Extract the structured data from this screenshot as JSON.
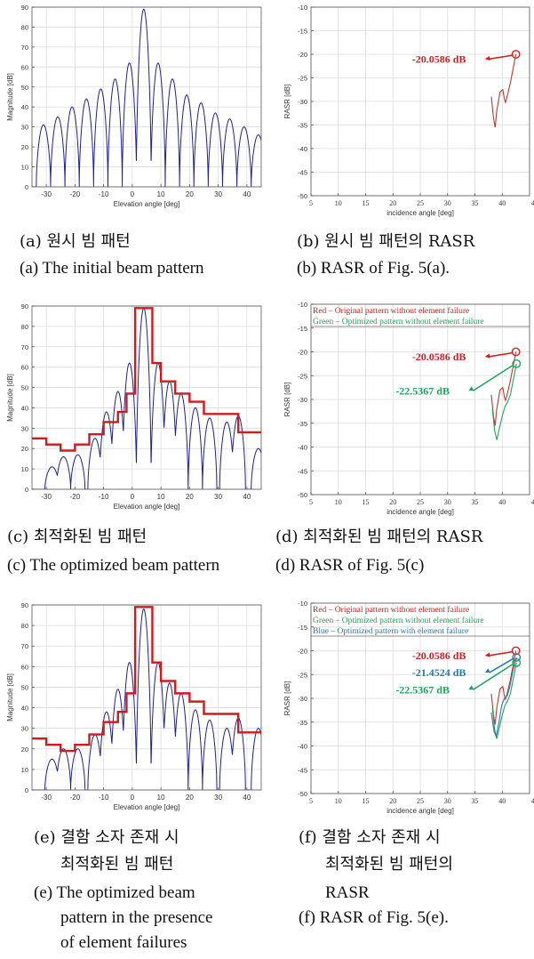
{
  "panels": [
    {
      "id": "a",
      "caption_ko": [
        "(a) 원시 빔 패턴"
      ],
      "caption_en": [
        "(a) The initial beam pattern"
      ],
      "chart_data": {
        "type": "line",
        "xlabel": "Elevation angle [deg]",
        "ylabel": "Magnitude [dB]",
        "xlim": [
          -35,
          45
        ],
        "ylim": [
          0,
          90
        ],
        "xticks": [
          -30,
          -20,
          -10,
          0,
          10,
          20,
          30,
          40
        ],
        "yticks": [
          0,
          10,
          20,
          30,
          40,
          50,
          60,
          70,
          80,
          90
        ],
        "grid": true,
        "series": [
          {
            "color": "#1f1f9a",
            "kind": "beam",
            "peak_x": 4,
            "peak_y": 89,
            "sidelobes": [
              [
                -1,
                62
              ],
              [
                9,
                62
              ],
              [
                -6,
                54
              ],
              [
                14,
                54
              ],
              [
                -11,
                49
              ],
              [
                19,
                46
              ],
              [
                -16,
                44
              ],
              [
                24,
                42
              ],
              [
                -21,
                40
              ],
              [
                29,
                37
              ],
              [
                -26,
                35
              ],
              [
                34,
                34
              ],
              [
                -31,
                31
              ],
              [
                39,
                30
              ],
              [
                44,
                26
              ]
            ]
          }
        ]
      }
    },
    {
      "id": "b",
      "caption_ko": [
        "(b) 원시 빔 패턴의 RASR"
      ],
      "caption_en": [
        "(b) RASR of Fig. 5(a)."
      ],
      "chart_data": {
        "type": "line",
        "xlabel": "incidence angle [deg]",
        "ylabel": "RASR [dB]",
        "xlim": [
          5,
          45
        ],
        "ylim": [
          -50,
          -10
        ],
        "xticks": [
          5,
          10,
          15,
          20,
          25,
          30,
          35,
          40
        ],
        "xtick_extra": "4:",
        "yticks": [
          -50,
          -45,
          -40,
          -35,
          -30,
          -25,
          -20,
          -15,
          -10
        ],
        "grid": true,
        "legend": [],
        "annotations": [
          {
            "text": "-20.0586 dB",
            "color": "#d42020",
            "text_x": 23.5,
            "text_y": -21,
            "point": [
              42.5,
              -20
            ]
          }
        ],
        "series": [
          {
            "color": "#c0392b",
            "x": [
              38.0,
              38.4,
              38.7,
              39.0,
              39.6,
              40.1,
              40.4,
              40.6,
              41.0,
              41.5,
              42.0,
              42.5
            ],
            "y": [
              -29,
              -33.5,
              -35.5,
              -32,
              -28,
              -27.5,
              -29.5,
              -30.2,
              -28.5,
              -26,
              -23,
              -20
            ]
          }
        ]
      }
    },
    {
      "id": "c",
      "caption_ko": [
        "(c) 최적화된 빔 패턴"
      ],
      "caption_en": [
        "(c) The optimized beam pattern"
      ],
      "chart_data": {
        "type": "line",
        "xlabel": "Elevation angle [deg]",
        "ylabel": "Magnitude [dB]",
        "xlim": [
          -35,
          45
        ],
        "ylim": [
          0,
          90
        ],
        "xticks": [
          -30,
          -20,
          -10,
          0,
          10,
          20,
          30,
          40
        ],
        "yticks": [
          0,
          10,
          20,
          30,
          40,
          50,
          60,
          70,
          80,
          90
        ],
        "grid": true,
        "mask": {
          "color": "#d11a1a",
          "x": [
            -35,
            -30,
            -30,
            -25,
            -25,
            -20,
            -20,
            -15,
            -15,
            -10,
            -10,
            -5,
            -5,
            -2,
            -2,
            1,
            1,
            7,
            7,
            10,
            10,
            15,
            15,
            20,
            20,
            25,
            25,
            30,
            30,
            37,
            37,
            45
          ],
          "y": [
            25,
            25,
            22,
            22,
            19,
            19,
            22,
            22,
            27,
            27,
            33,
            33,
            38,
            38,
            47,
            47,
            89,
            89,
            62,
            62,
            53,
            53,
            47,
            47,
            43,
            43,
            37,
            37,
            37,
            37,
            28,
            28
          ]
        },
        "series": [
          {
            "color": "#1f1f9a",
            "kind": "beam",
            "peak_x": 4,
            "peak_y": 89,
            "sidelobes": [
              [
                -1,
                62
              ],
              [
                9,
                62
              ],
              [
                -5,
                48
              ],
              [
                13,
                53
              ],
              [
                -9,
                38
              ],
              [
                17,
                47
              ],
              [
                -13,
                25
              ],
              [
                22,
                40
              ],
              [
                -19,
                17
              ],
              [
                27,
                35
              ],
              [
                -24,
                16
              ],
              [
                33,
                33
              ],
              [
                -28,
                11
              ],
              [
                37,
                36
              ],
              [
                44,
                20
              ]
            ]
          }
        ]
      }
    },
    {
      "id": "d",
      "caption_ko": [
        "(d) 최적화된 빔 패턴의 RASR"
      ],
      "caption_en": [
        "(d) RASR of Fig. 5(c)"
      ],
      "chart_data": {
        "type": "line",
        "xlabel": "incidence angle [deg]",
        "ylabel": "RASR [dB]",
        "xlim": [
          5,
          45
        ],
        "ylim": [
          -50,
          -10
        ],
        "xticks": [
          5,
          10,
          15,
          20,
          25,
          30,
          35,
          40
        ],
        "xtick_extra": "4",
        "yticks": [
          -50,
          -45,
          -40,
          -35,
          -30,
          -25,
          -20,
          -15,
          -10
        ],
        "grid": true,
        "legend": [
          {
            "text": "Red – Original pattern without element failure",
            "color": "#d42020"
          },
          {
            "text": "Green –  Optimized pattern without element failure",
            "color": "#1fa55a"
          }
        ],
        "annotations": [
          {
            "text": "-20.0586 dB",
            "color": "#d42020",
            "text_x": 23.5,
            "text_y": -21,
            "point": [
              42.5,
              -20
            ]
          },
          {
            "text": "-22.5367 dB",
            "color": "#1fa55a",
            "text_x": 20.5,
            "text_y": -28.2,
            "point": [
              42.6,
              -22.5
            ]
          }
        ],
        "series": [
          {
            "color": "#c0392b",
            "x": [
              38.0,
              38.4,
              38.7,
              39.0,
              39.6,
              40.1,
              40.4,
              40.6,
              41.0,
              41.5,
              42.0,
              42.5
            ],
            "y": [
              -29,
              -33.5,
              -35.5,
              -32,
              -28,
              -27.5,
              -29.5,
              -30.2,
              -28.5,
              -26,
              -23,
              -20
            ]
          },
          {
            "color": "#1fa55a",
            "x": [
              38.2,
              38.6,
              39.0,
              39.5,
              40.0,
              40.5,
              41.0,
              41.5,
              42.0,
              42.6
            ],
            "y": [
              -32,
              -36.5,
              -38.5,
              -36,
              -33.5,
              -31.5,
              -30.5,
              -29,
              -26,
              -22.5
            ]
          }
        ]
      }
    },
    {
      "id": "e",
      "caption_ko": [
        "(e) 결함 소자 존재 시",
        "최적화된 빔 패턴"
      ],
      "caption_en": [
        "(e) The optimized beam",
        "pattern in the presence",
        "of element failures"
      ],
      "chart_data": {
        "type": "line",
        "xlabel": "Elevation angle [deg]",
        "ylabel": "Magnitude [dB]",
        "xlim": [
          -35,
          45
        ],
        "ylim": [
          0,
          90
        ],
        "xticks": [
          -30,
          -20,
          -10,
          0,
          10,
          20,
          30,
          40
        ],
        "yticks": [
          0,
          10,
          20,
          30,
          40,
          50,
          60,
          70,
          80,
          90
        ],
        "grid": true,
        "mask": {
          "color": "#d11a1a",
          "x": [
            -35,
            -30,
            -30,
            -25,
            -25,
            -20,
            -20,
            -15,
            -15,
            -10,
            -10,
            -5,
            -5,
            -2,
            -2,
            1,
            1,
            7,
            7,
            10,
            10,
            15,
            15,
            20,
            20,
            25,
            25,
            30,
            30,
            37,
            37,
            45
          ],
          "y": [
            25,
            25,
            22,
            22,
            19,
            19,
            22,
            22,
            27,
            27,
            33,
            33,
            38,
            38,
            47,
            47,
            89,
            89,
            62,
            62,
            53,
            53,
            47,
            47,
            43,
            43,
            37,
            37,
            37,
            37,
            28,
            28
          ]
        },
        "series": [
          {
            "color": "#1f1f9a",
            "kind": "beam",
            "peak_x": 4,
            "peak_y": 88,
            "sidelobes": [
              [
                -1,
                62
              ],
              [
                9,
                62
              ],
              [
                -5,
                49
              ],
              [
                13,
                52
              ],
              [
                -9,
                38
              ],
              [
                17,
                47
              ],
              [
                -13,
                27
              ],
              [
                22,
                39
              ],
              [
                -19,
                20
              ],
              [
                27,
                34
              ],
              [
                -24,
                20
              ],
              [
                33,
                30
              ],
              [
                -28,
                15
              ],
              [
                37,
                35
              ],
              [
                44,
                30
              ]
            ]
          }
        ]
      }
    },
    {
      "id": "f",
      "caption_ko": [
        "(f) 결함 소자 존재 시",
        "최적화된 빔 패턴의"
      ],
      "caption_en": [
        "RASR",
        "(f) RASR of Fig. 5(e)."
      ],
      "chart_data": {
        "type": "line",
        "xlabel": "incidence angle [deg]",
        "ylabel": "RASR [dB]",
        "xlim": [
          5,
          45
        ],
        "ylim": [
          -50,
          -10
        ],
        "xticks": [
          5,
          10,
          15,
          20,
          25,
          30,
          35,
          40
        ],
        "xtick_extra": "4",
        "yticks": [
          -50,
          -45,
          -40,
          -35,
          -30,
          -25,
          -20,
          -15,
          -10
        ],
        "grid": true,
        "legend": [
          {
            "text": "Red – Original pattern without element failure",
            "color": "#d42020"
          },
          {
            "text": "Green –  Optimized pattern without element failure",
            "color": "#1fa55a"
          },
          {
            "text": "Blue – Optimized pattern with element failure",
            "color": "#2a7ab8"
          }
        ],
        "annotations": [
          {
            "text": "-20.0586 dB",
            "color": "#d42020",
            "text_x": 23.5,
            "text_y": -21,
            "point": [
              42.5,
              -20
            ]
          },
          {
            "text": "-21.4524 dB",
            "color": "#2a7ab8",
            "text_x": 23.5,
            "text_y": -24.6,
            "point": [
              42.6,
              -21.4
            ]
          },
          {
            "text": "-22.5367 dB",
            "color": "#1fa55a",
            "text_x": 20.5,
            "text_y": -28.2,
            "point": [
              42.6,
              -22.5
            ]
          }
        ],
        "series": [
          {
            "color": "#c0392b",
            "x": [
              38.0,
              38.4,
              38.7,
              39.0,
              39.6,
              40.1,
              40.4,
              40.6,
              41.0,
              41.5,
              42.0,
              42.5
            ],
            "y": [
              -29,
              -33.5,
              -35.5,
              -32,
              -28,
              -27.5,
              -29.5,
              -30.2,
              -28.5,
              -26,
              -23,
              -20
            ]
          },
          {
            "color": "#1fa55a",
            "x": [
              38.2,
              38.6,
              39.0,
              39.5,
              40.0,
              40.5,
              41.0,
              41.5,
              42.0,
              42.6
            ],
            "y": [
              -32,
              -36.5,
              -38.5,
              -36,
              -33.5,
              -31.5,
              -30.5,
              -29,
              -26,
              -22.5
            ]
          },
          {
            "color": "#2a7ab8",
            "x": [
              38.0,
              38.5,
              38.9,
              39.4,
              39.9,
              40.4,
              40.9,
              41.4,
              41.9,
              42.6
            ],
            "y": [
              -33,
              -37,
              -38,
              -35,
              -31.5,
              -30,
              -29.5,
              -27.5,
              -24.5,
              -21.4
            ]
          }
        ]
      }
    }
  ]
}
